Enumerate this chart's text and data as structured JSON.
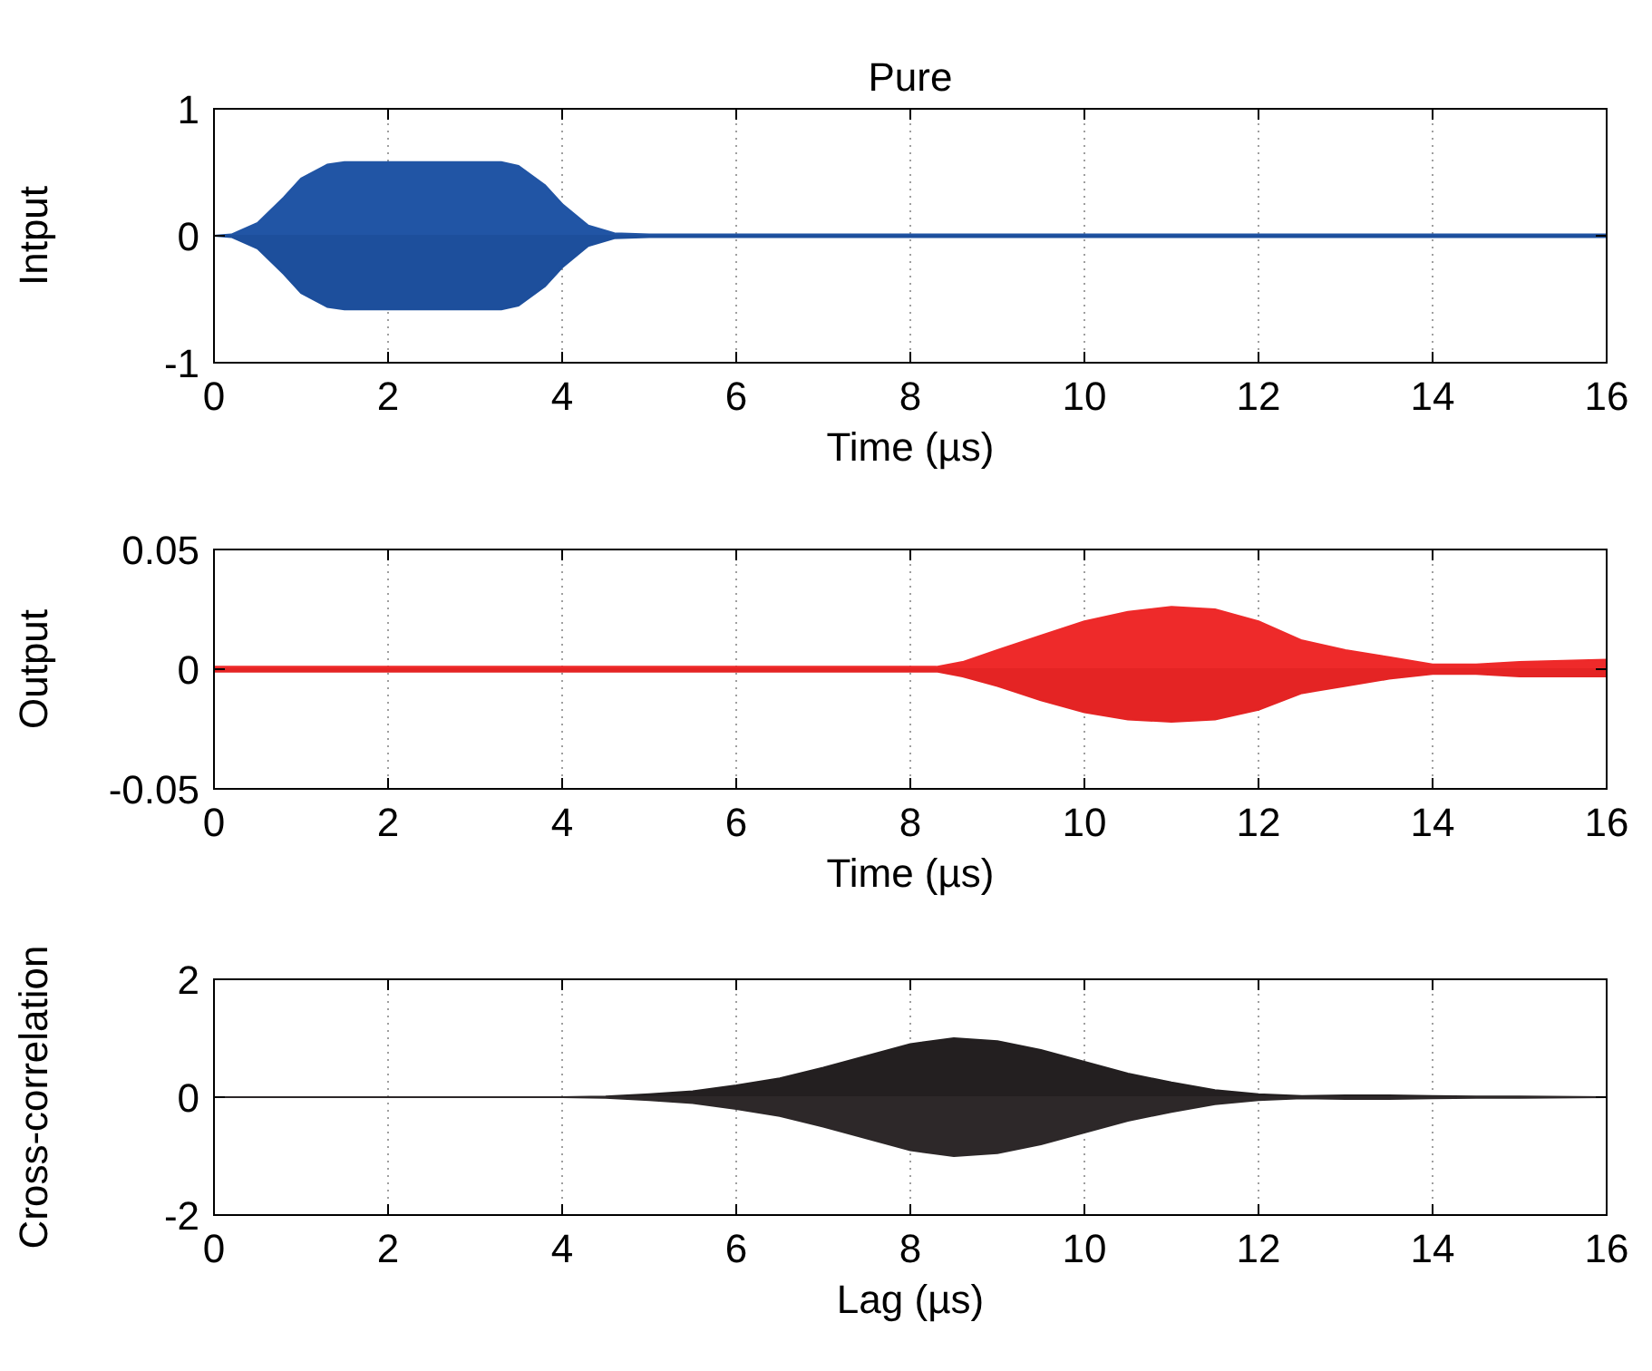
{
  "chart_data": [
    {
      "type": "area",
      "title": "Pure",
      "xlabel": "Time (µs)",
      "ylabel": "Intput",
      "xlim": [
        0,
        16
      ],
      "xticks": [
        0,
        2,
        4,
        6,
        8,
        10,
        12,
        14,
        16
      ],
      "ylim": [
        -1,
        1
      ],
      "yticks": [
        -1,
        0,
        1
      ],
      "grid": "x",
      "x": [
        0,
        0.2,
        0.5,
        0.8,
        1,
        1.3,
        1.5,
        2,
        2.5,
        3,
        3.3,
        3.5,
        3.8,
        4,
        4.3,
        4.6,
        5,
        8,
        12,
        16
      ],
      "series": [
        {
          "color": "#2155a5",
          "values": [
            0,
            0.01,
            0.1,
            0.3,
            0.45,
            0.56,
            0.58,
            0.58,
            0.58,
            0.58,
            0.58,
            0.55,
            0.4,
            0.25,
            0.08,
            0.02,
            0.01,
            0.01,
            0.01,
            0.01
          ]
        },
        {
          "color": "#1d4f9c",
          "values": [
            0,
            -0.01,
            -0.1,
            -0.3,
            -0.45,
            -0.56,
            -0.58,
            -0.58,
            -0.58,
            -0.58,
            -0.58,
            -0.55,
            -0.4,
            -0.25,
            -0.08,
            -0.02,
            -0.01,
            -0.01,
            -0.01,
            -0.01
          ]
        }
      ]
    },
    {
      "type": "area",
      "xlabel": "Time (µs)",
      "ylabel": "Output",
      "xlim": [
        0,
        16
      ],
      "xticks": [
        0,
        2,
        4,
        6,
        8,
        10,
        12,
        14,
        16
      ],
      "ylim": [
        -0.05,
        0.05
      ],
      "yticks": [
        -0.05,
        0,
        0.05
      ],
      "grid": "x",
      "x": [
        0,
        4,
        8,
        8.3,
        8.6,
        9,
        9.5,
        10,
        10.5,
        11,
        11.5,
        12,
        12.5,
        13,
        13.5,
        14,
        14.5,
        15,
        16
      ],
      "series": [
        {
          "color": "#ee2a2a",
          "values": [
            0.001,
            0.001,
            0.001,
            0.001,
            0.003,
            0.008,
            0.014,
            0.02,
            0.024,
            0.026,
            0.025,
            0.02,
            0.012,
            0.008,
            0.005,
            0.002,
            0.002,
            0.003,
            0.004
          ]
        },
        {
          "color": "#e42424",
          "values": [
            -0.001,
            -0.001,
            -0.001,
            -0.001,
            -0.003,
            -0.007,
            -0.013,
            -0.018,
            -0.021,
            -0.022,
            -0.021,
            -0.017,
            -0.01,
            -0.007,
            -0.004,
            -0.002,
            -0.002,
            -0.003,
            -0.003
          ]
        }
      ]
    },
    {
      "type": "area",
      "xlabel": "Lag (µs)",
      "ylabel": "Cross-correlation",
      "xlim": [
        0,
        16
      ],
      "xticks": [
        0,
        2,
        4,
        6,
        8,
        10,
        12,
        14,
        16
      ],
      "ylim": [
        -2,
        2
      ],
      "yticks": [
        -2,
        0,
        2
      ],
      "grid": "x",
      "x": [
        0,
        4,
        4.5,
        5,
        5.5,
        6,
        6.5,
        7,
        7.5,
        8,
        8.5,
        9,
        9.5,
        10,
        10.5,
        11,
        11.5,
        12,
        12.5,
        13,
        13.5,
        14,
        14.5,
        15,
        16
      ],
      "series": [
        {
          "color": "#231f20",
          "values": [
            0,
            0,
            0.01,
            0.05,
            0.1,
            0.2,
            0.32,
            0.5,
            0.7,
            0.9,
            1.0,
            0.95,
            0.8,
            0.6,
            0.4,
            0.25,
            0.12,
            0.05,
            0.02,
            0.03,
            0.03,
            0.02,
            0.01,
            0.01,
            0
          ]
        },
        {
          "color": "#2d2829",
          "values": [
            0,
            0,
            -0.01,
            -0.05,
            -0.1,
            -0.2,
            -0.32,
            -0.5,
            -0.7,
            -0.9,
            -1.0,
            -0.95,
            -0.8,
            -0.6,
            -0.4,
            -0.25,
            -0.12,
            -0.05,
            -0.02,
            -0.03,
            -0.03,
            -0.02,
            -0.01,
            -0.01,
            0
          ]
        }
      ]
    }
  ]
}
